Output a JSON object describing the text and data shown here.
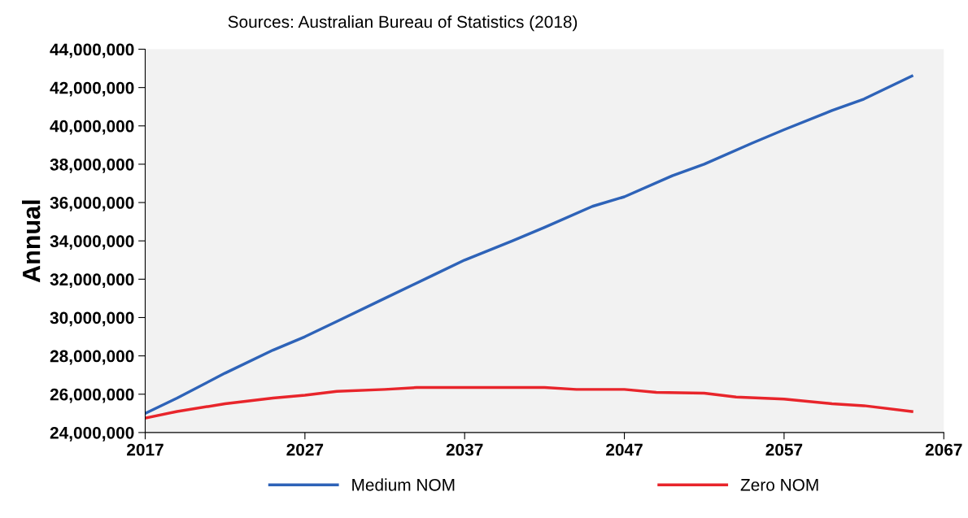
{
  "chart_data": {
    "type": "line",
    "ylabel": "Annual",
    "annotations": [
      "Sources: Australian Bureau of Statistics (2018)"
    ],
    "xlim": [
      2017,
      2067
    ],
    "xticks": [
      2017,
      2027,
      2037,
      2047,
      2057,
      2067
    ],
    "ylim": [
      24000000,
      44000000
    ],
    "yticks": [
      {
        "value": 24000000,
        "label": "24,000,000"
      },
      {
        "value": 26000000,
        "label": "26,000,000"
      },
      {
        "value": 28000000,
        "label": "28,000,000"
      },
      {
        "value": 30000000,
        "label": "30,000,000"
      },
      {
        "value": 32000000,
        "label": "32,000,000"
      },
      {
        "value": 34000000,
        "label": "34,000,000"
      },
      {
        "value": 36000000,
        "label": "36,000,000"
      },
      {
        "value": 38000000,
        "label": "38,000,000"
      },
      {
        "value": 40000000,
        "label": "40,000,000"
      },
      {
        "value": 42000000,
        "label": "42,000,000"
      },
      {
        "value": 44000000,
        "label": "44,000,000"
      }
    ],
    "grid": false,
    "legend": "bottom",
    "marker": "none",
    "line_style": "solid",
    "series": [
      {
        "name": "Medium NOM",
        "color": "#2e63b8",
        "x": [
          2017,
          2019,
          2022,
          2025,
          2027,
          2029,
          2032,
          2035,
          2037,
          2040,
          2042,
          2045,
          2047,
          2050,
          2052,
          2055,
          2057,
          2060,
          2062,
          2065
        ],
        "values": [
          25000000,
          25800000,
          27100000,
          28300000,
          29000000,
          29800000,
          31000000,
          32200000,
          33000000,
          34000000,
          34700000,
          35800000,
          36300000,
          37400000,
          38000000,
          39100000,
          39800000,
          40800000,
          41400000,
          42600000
        ]
      },
      {
        "name": "Zero NOM",
        "color": "#e8252b",
        "x": [
          2017,
          2019,
          2022,
          2025,
          2027,
          2029,
          2032,
          2034,
          2037,
          2042,
          2044,
          2047,
          2049,
          2052,
          2054,
          2057,
          2060,
          2062,
          2065
        ],
        "values": [
          24750000,
          25100000,
          25500000,
          25800000,
          25950000,
          26150000,
          26250000,
          26350000,
          26350000,
          26350000,
          26250000,
          26250000,
          26100000,
          26050000,
          25850000,
          25750000,
          25500000,
          25400000,
          25100000
        ]
      }
    ]
  }
}
